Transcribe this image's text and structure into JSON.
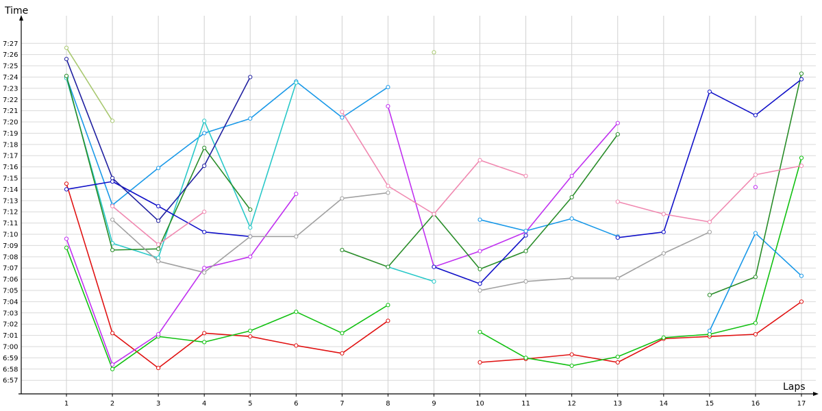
{
  "chart_data": {
    "type": "line",
    "ylabel": "Time",
    "xlabel": "Laps",
    "x": [
      1,
      2,
      3,
      4,
      5,
      6,
      7,
      8,
      9,
      10,
      11,
      12,
      13,
      14,
      15,
      16,
      17
    ],
    "y_min_seconds": 415,
    "y_max_seconds": 449,
    "y_ticks": [
      "6:57",
      "6:58",
      "6:59",
      "7:00",
      "7:01",
      "7:02",
      "7:03",
      "7:04",
      "7:05",
      "7:06",
      "7:07",
      "7:08",
      "7:09",
      "7:10",
      "7:11",
      "7:12",
      "7:13",
      "7:14",
      "7:15",
      "7:16",
      "7:17",
      "7:18",
      "7:19",
      "7:20",
      "7:21",
      "7:22",
      "7:23",
      "7:24",
      "7:25",
      "7:26",
      "7:27"
    ],
    "grid": true,
    "series": [
      {
        "color": "#e01010",
        "values": [
          434.5,
          421.2,
          418.1,
          421.2,
          420.9,
          420.1,
          419.4,
          422.3,
          null,
          418.6,
          418.9,
          419.3,
          418.6,
          420.7,
          420.9,
          421.1,
          424.0
        ]
      },
      {
        "color": "#10c010",
        "values": [
          428.8,
          418.0,
          420.9,
          420.4,
          421.4,
          423.1,
          421.2,
          423.7,
          null,
          421.3,
          419.0,
          418.3,
          419.1,
          420.8,
          421.1,
          422.1,
          436.8
        ]
      },
      {
        "color": "#c030f0",
        "values": [
          429.6,
          418.4,
          421.1,
          427.0,
          428.0,
          433.6,
          null,
          441.4,
          427.1,
          428.5,
          430.2,
          435.2,
          439.9,
          null,
          null,
          434.2,
          null
        ]
      },
      {
        "color": "#1898e8",
        "values": [
          444.0,
          432.6,
          435.9,
          439.0,
          440.3,
          443.6,
          440.4,
          443.1,
          null,
          431.3,
          430.3,
          431.4,
          429.8,
          null,
          421.4,
          430.1,
          426.3
        ]
      },
      {
        "color": "#28c8c8",
        "values": [
          443.9,
          429.2,
          427.9,
          440.1,
          430.6,
          443.5,
          null,
          427.1,
          425.8,
          null,
          null,
          null,
          null,
          null,
          null,
          null,
          null
        ]
      },
      {
        "color": "#288c28",
        "values": [
          444.1,
          428.6,
          428.7,
          437.7,
          432.2,
          null,
          428.6,
          427.1,
          431.8,
          426.9,
          428.5,
          433.3,
          438.9,
          null,
          424.6,
          426.2,
          444.3
        ]
      },
      {
        "color": "#1010c8",
        "values": [
          434.0,
          434.7,
          432.5,
          430.2,
          429.8,
          null,
          null,
          null,
          427.1,
          425.6,
          429.9,
          null,
          429.7,
          430.2,
          442.7,
          440.6,
          443.8
        ]
      },
      {
        "color": "#2020a0",
        "values": [
          445.6,
          435.0,
          431.2,
          436.1,
          444.0,
          null,
          null,
          null,
          null,
          null,
          null,
          null,
          null,
          null,
          null,
          null,
          null
        ]
      },
      {
        "color": "#f088b0",
        "values": [
          null,
          432.5,
          429.1,
          432.0,
          null,
          null,
          440.9,
          434.3,
          431.8,
          436.6,
          435.2,
          null,
          432.9,
          431.8,
          431.1,
          435.3,
          436.1
        ]
      },
      {
        "color": "#a0a0a0",
        "values": [
          null,
          431.3,
          427.6,
          426.6,
          429.8,
          429.8,
          433.2,
          433.7,
          null,
          425.0,
          425.8,
          426.1,
          426.1,
          428.3,
          430.2,
          null,
          null
        ]
      },
      {
        "color": "#a8c870",
        "values": [
          446.6,
          440.1,
          null,
          null,
          null,
          null,
          null,
          null,
          446.2,
          null,
          null,
          null,
          null,
          null,
          null,
          null,
          null
        ]
      }
    ]
  }
}
